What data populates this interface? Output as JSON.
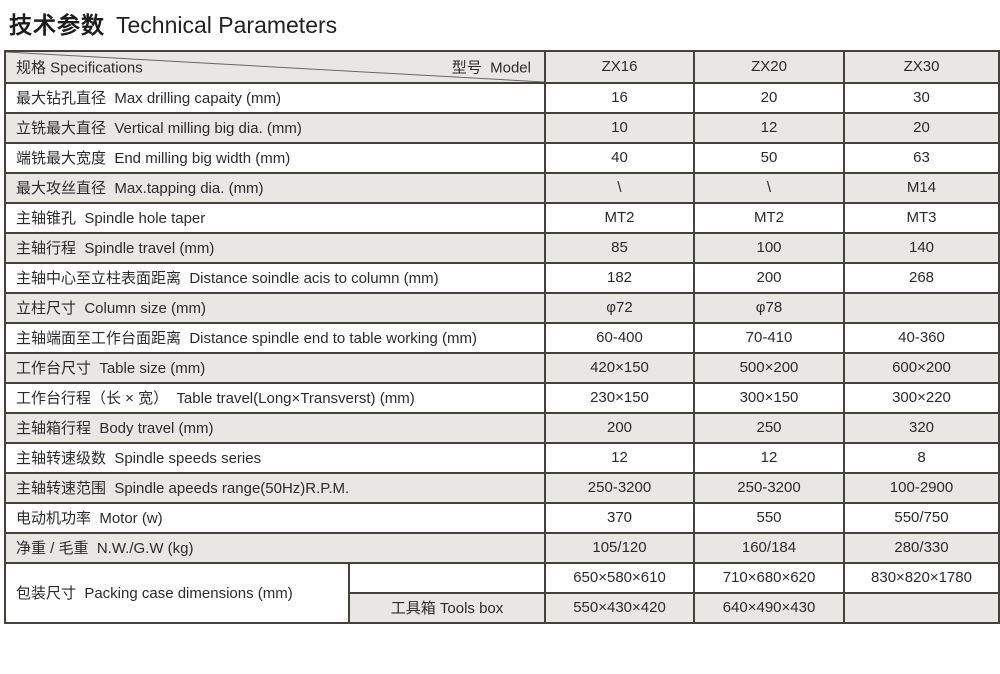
{
  "title": {
    "cn": "技术参数",
    "en": "Technical Parameters"
  },
  "table": {
    "spec_header": "规格 Specifications",
    "model_header": "型号  Model",
    "columns": [
      "ZX16",
      "ZX20",
      "ZX30"
    ],
    "rows": [
      {
        "label": "最大钻孔直径  Max drilling capaity (mm)",
        "values": [
          "16",
          "20",
          "30"
        ]
      },
      {
        "label": "立铣最大直径  Vertical milling big dia. (mm)",
        "values": [
          "10",
          "12",
          "20"
        ]
      },
      {
        "label": "端铣最大宽度  End milling big width (mm)",
        "values": [
          "40",
          "50",
          "63"
        ]
      },
      {
        "label": "最大攻丝直径  Max.tapping dia. (mm)",
        "values": [
          "\\",
          "\\",
          "M14"
        ]
      },
      {
        "label": "主轴锥孔  Spindle hole taper",
        "values": [
          "MT2",
          "MT2",
          "MT3"
        ]
      },
      {
        "label": "主轴行程  Spindle travel (mm)",
        "values": [
          "85",
          "100",
          "140"
        ]
      },
      {
        "label": "主轴中心至立柱表面距离  Distance soindle acis to column (mm)",
        "values": [
          "182",
          "200",
          "268"
        ]
      },
      {
        "label": "立柱尺寸  Column size (mm)",
        "values": [
          "φ72",
          "φ78",
          ""
        ]
      },
      {
        "label": "主轴端面至工作台面距离  Distance spindle end to table working (mm)",
        "values": [
          "60-400",
          "70-410",
          "40-360"
        ]
      },
      {
        "label": "工作台尺寸  Table size (mm)",
        "values": [
          "420×150",
          "500×200",
          "600×200"
        ]
      },
      {
        "label": "工作台行程（长 × 宽）  Table travel(Long×Transverst) (mm)",
        "values": [
          "230×150",
          "300×150",
          "300×220"
        ]
      },
      {
        "label": "主轴箱行程  Body travel (mm)",
        "values": [
          "200",
          "250",
          "320"
        ]
      },
      {
        "label": "主轴转速级数  Spindle speeds series",
        "values": [
          "12",
          "12",
          "8"
        ]
      },
      {
        "label": "主轴转速范围  Spindle apeeds range(50Hz)R.P.M.",
        "values": [
          "250-3200",
          "250-3200",
          "100-2900"
        ]
      },
      {
        "label": "电动机功率  Motor (w)",
        "values": [
          "370",
          "550",
          "550/750"
        ]
      },
      {
        "label": "净重 / 毛重  N.W./G.W (kg)",
        "values": [
          "105/120",
          "160/184",
          "280/330"
        ]
      }
    ],
    "packing": {
      "label": "包装尺寸  Packing case dimensions (mm)",
      "rows": [
        {
          "sublabel": "",
          "values": [
            "650×580×610",
            "710×680×620",
            "830×820×1780"
          ]
        },
        {
          "sublabel": "工具箱 Tools box",
          "values": [
            "550×430×420",
            "640×490×430",
            ""
          ]
        }
      ]
    }
  },
  "colors": {
    "row_alt": "#e9e7e4",
    "border": "#45413c",
    "text": "#2b2b2b"
  }
}
